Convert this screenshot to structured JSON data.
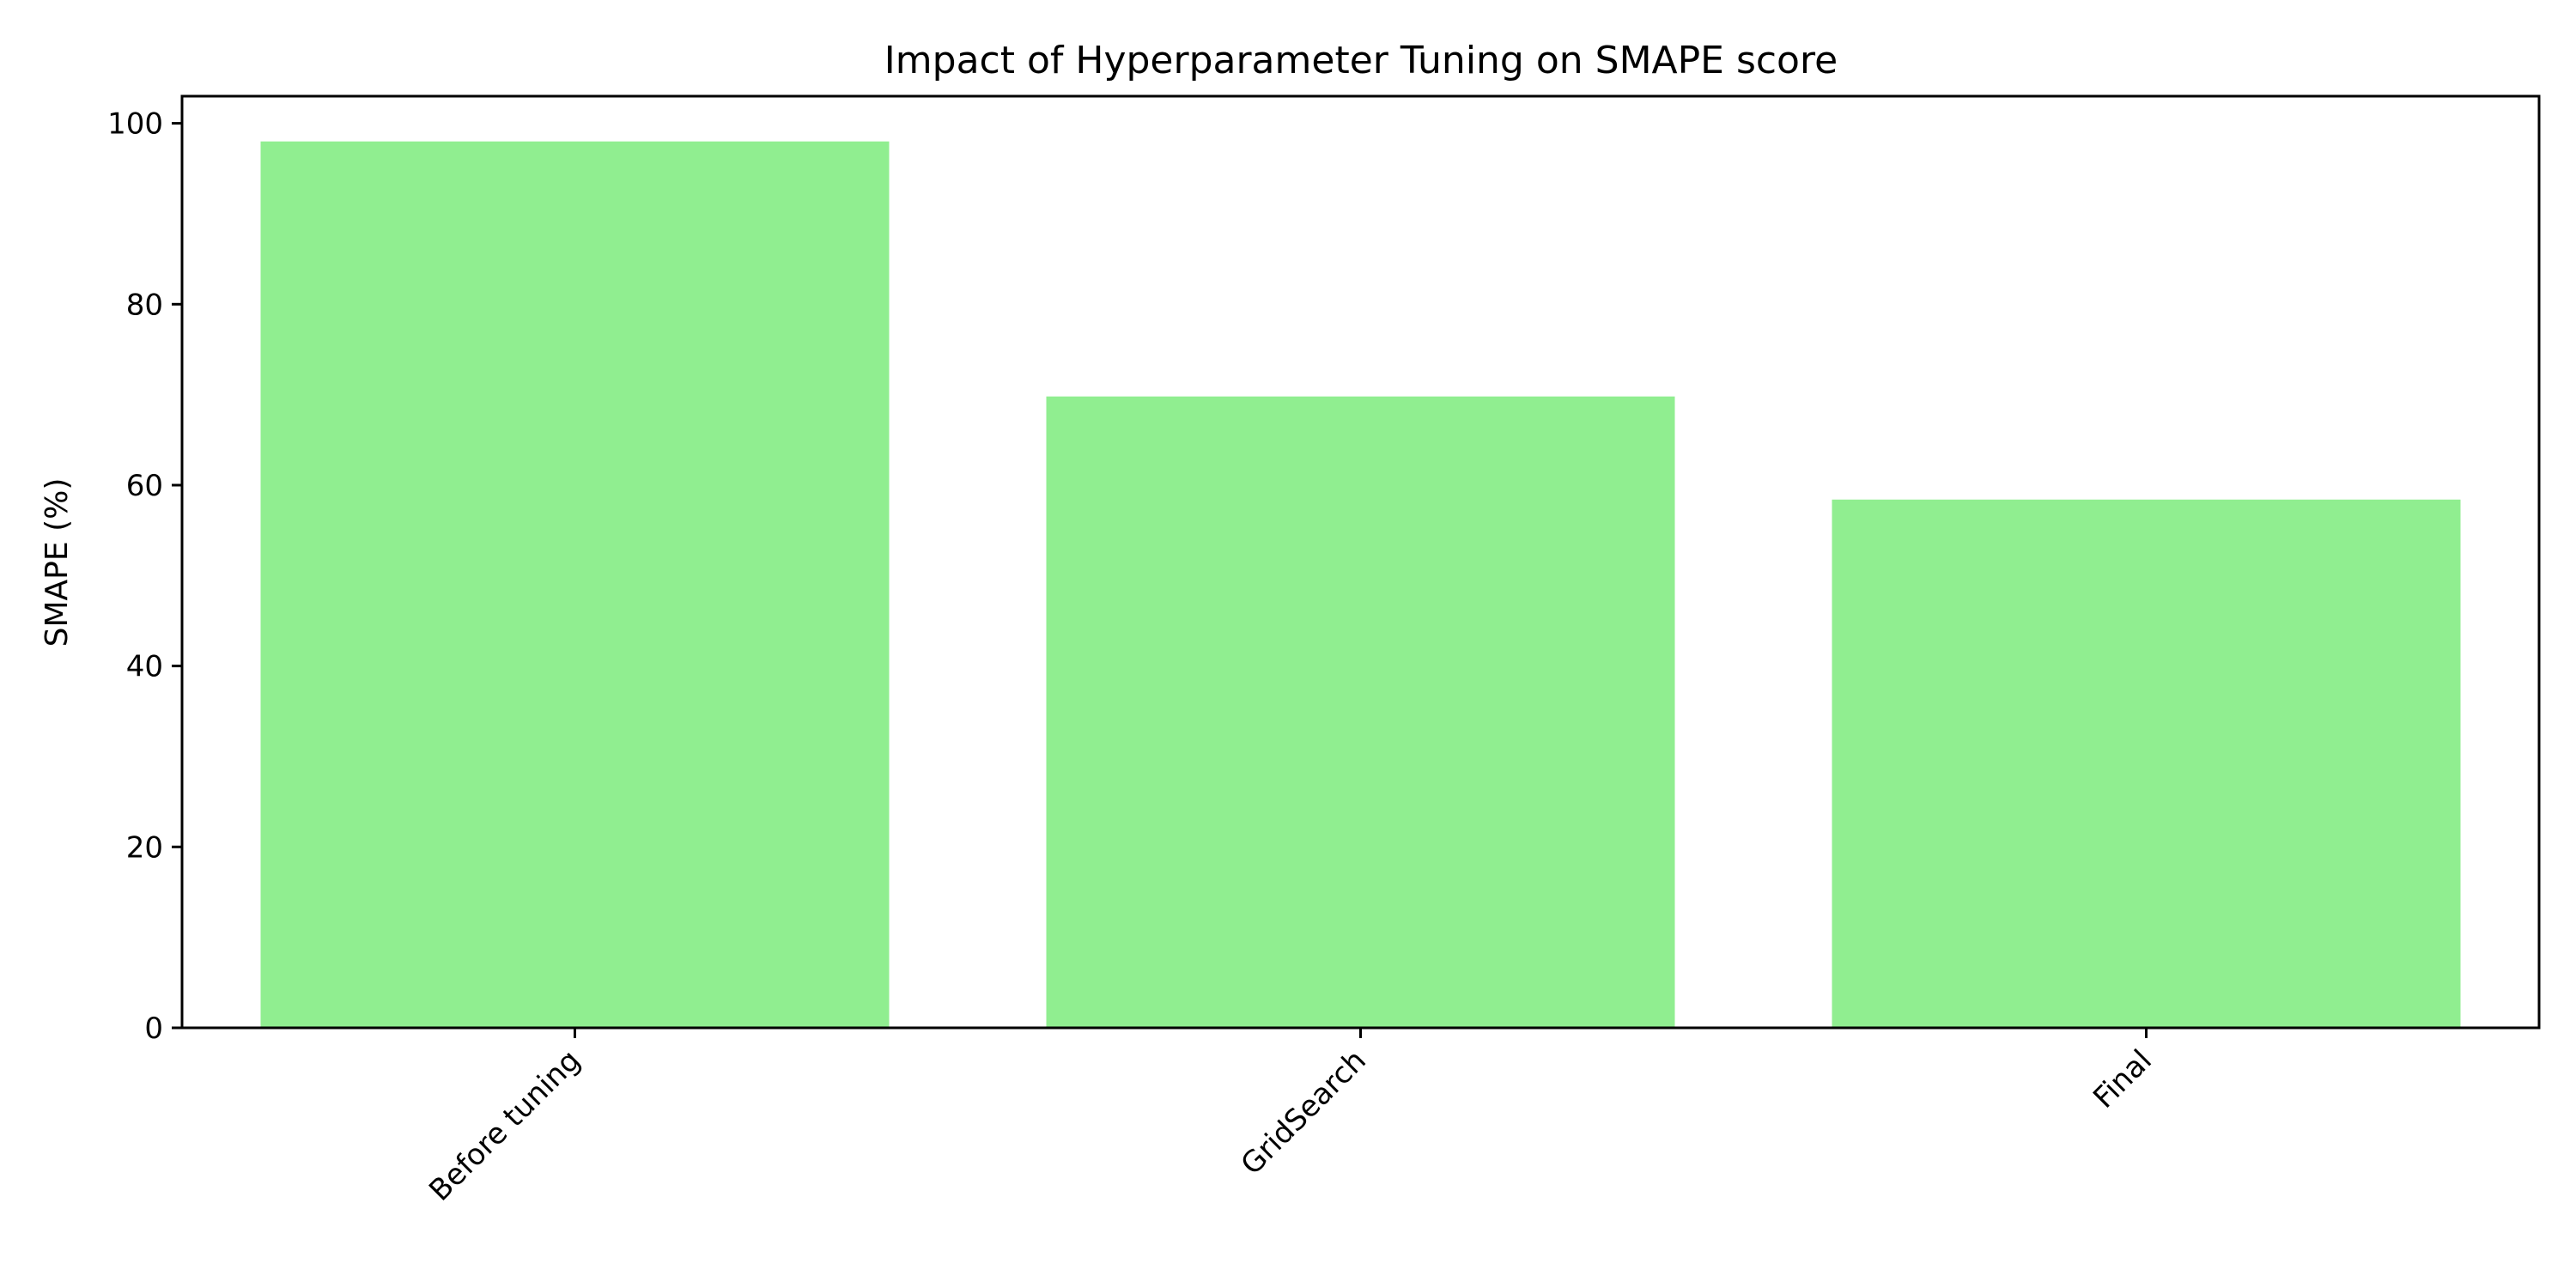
{
  "chart_data": {
    "type": "bar",
    "title": "Impact of Hyperparameter Tuning on SMAPE score",
    "xlabel": "",
    "ylabel": "SMAPE (%)",
    "categories": [
      "Before tuning",
      "GridSearch",
      "Final"
    ],
    "values": [
      98.0,
      69.8,
      58.4
    ],
    "ylim": [
      0,
      103
    ],
    "yticks": [
      0,
      20,
      40,
      60,
      80,
      100
    ],
    "bar_color": "#90EE90",
    "grid": false,
    "legend": "none"
  }
}
